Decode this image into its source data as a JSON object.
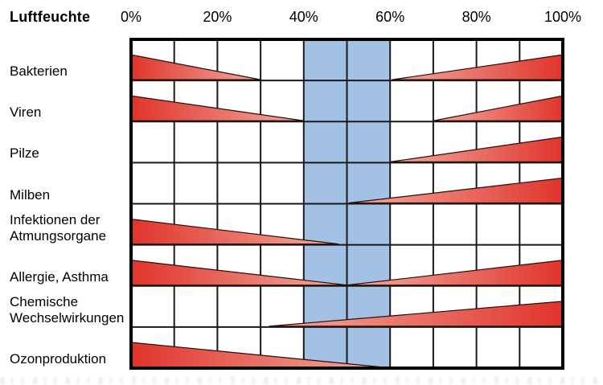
{
  "header": {
    "title": "Luftfeuchte"
  },
  "axis": {
    "tick_labels": [
      "0%",
      "20%",
      "40%",
      "60%",
      "80%",
      "100%"
    ],
    "tick_percents": [
      0,
      20,
      40,
      60,
      80,
      100
    ]
  },
  "chart_data": {
    "type": "area",
    "title": "Luftfeuchte",
    "xlabel": "Luftfeuchte",
    "xlim": [
      0,
      100
    ],
    "x_tick_labels": [
      "0%",
      "20%",
      "40%",
      "60%",
      "80%",
      "100%"
    ],
    "x_tick_percents": [
      0,
      20,
      40,
      60,
      80,
      100
    ],
    "x_gridline_step_percent": 10,
    "grid": "on",
    "optimal_band": {
      "from_percent": 40,
      "to_percent": 60
    },
    "rows": [
      {
        "label_lines": [
          "Bakterien"
        ],
        "wedges": [
          {
            "trend": "decreasing",
            "from_percent": 0,
            "to_percent": 30
          },
          {
            "trend": "increasing",
            "from_percent": 60.5,
            "to_percent": 100
          }
        ]
      },
      {
        "label_lines": [
          "Viren"
        ],
        "wedges": [
          {
            "trend": "decreasing",
            "from_percent": 0,
            "to_percent": 40
          },
          {
            "trend": "increasing",
            "from_percent": 70,
            "to_percent": 100
          }
        ]
      },
      {
        "label_lines": [
          "Pilze"
        ],
        "wedges": [
          {
            "trend": "increasing",
            "from_percent": 60,
            "to_percent": 100
          }
        ]
      },
      {
        "label_lines": [
          "Milben"
        ],
        "wedges": [
          {
            "trend": "increasing",
            "from_percent": 50.5,
            "to_percent": 100
          }
        ]
      },
      {
        "label_lines": [
          "Infektionen der",
          "Atmungsorgane"
        ],
        "wedges": [
          {
            "trend": "decreasing",
            "from_percent": 0,
            "to_percent": 48
          }
        ]
      },
      {
        "label_lines": [
          "Allergie, Asthma"
        ],
        "wedges": [
          {
            "trend": "decreasing",
            "from_percent": 0,
            "to_percent": 50
          },
          {
            "trend": "increasing",
            "from_percent": 50,
            "to_percent": 100
          }
        ]
      },
      {
        "label_lines": [
          "Chemische",
          "Wechselwirkungen"
        ],
        "wedges": [
          {
            "trend": "increasing",
            "from_percent": 32,
            "to_percent": 100
          }
        ]
      },
      {
        "label_lines": [
          "Ozonproduktion"
        ],
        "wedges": [
          {
            "trend": "decreasing",
            "from_percent": 0,
            "to_percent": 58.5
          }
        ]
      }
    ]
  },
  "colors": {
    "wedge_red_dark": "#e0342b",
    "wedge_red_light": "#f2aca0",
    "wedge_outline": "#2a0d09",
    "optimal_band_blue": "#a2c1e4",
    "grid_line": "#1a1a1a",
    "border": "#000000",
    "text": "#000000",
    "background": "#ffffff"
  }
}
